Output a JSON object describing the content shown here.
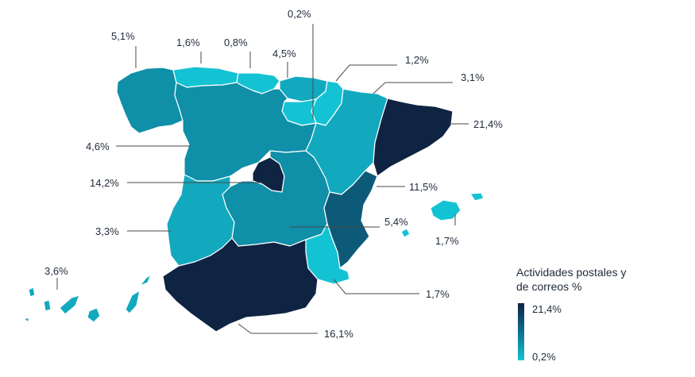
{
  "legend": {
    "title_line1": "Actividades postales y",
    "title_line2": "de correos %",
    "max_label": "21,4%",
    "min_label": "0,2%"
  },
  "colors": {
    "darkest": "#0f2343",
    "dark": "#0d5a78",
    "mid": "#0f8fa8",
    "light": "#12a9bf",
    "lightest": "#14c3d3"
  },
  "regions": {
    "galicia": "5,1%",
    "asturias": "1,6%",
    "cantabria": "0,8%",
    "pais_vasco": "4,5%",
    "la_rioja": "0,2%",
    "navarra": "1,2%",
    "aragon": "3,1%",
    "cataluna": "21,4%",
    "castilla_leon": "4,6%",
    "madrid": "14,2%",
    "valencia": "11,5%",
    "castilla_la_mancha": "5,4%",
    "extremadura": "3,3%",
    "baleares": "1,7%",
    "murcia": "1,7%",
    "canarias": "3,6%",
    "andalucia": "16,1%"
  }
}
